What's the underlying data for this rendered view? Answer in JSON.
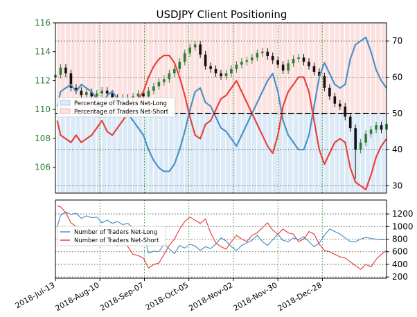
{
  "chart_data": [
    {
      "type": "line",
      "title": "USDJPY Client Positioning",
      "x_ticks": [
        "2018-Jul-13",
        "2018-Aug-10",
        "2018-Sep-07",
        "2018-Oct-05",
        "2018-Nov-02",
        "2018-Nov-30",
        "2018-Dec-28"
      ],
      "price_axis": {
        "ylim": [
          104.2,
          116
        ],
        "ticks": [
          106,
          108,
          110,
          112,
          114,
          116
        ],
        "color": "#2e7d32"
      },
      "sentiment_axis": {
        "ylim": [
          28,
          75
        ],
        "ticks": [
          30,
          40,
          50,
          60,
          70
        ],
        "reference_line": 50
      },
      "legend": {
        "placement": "center-left",
        "entries": [
          "Percentage of Traders Net-Long",
          "Percentage of Traders Net-Short"
        ]
      },
      "grid": true,
      "series": [
        {
          "name": "Percentage of Traders Net-Long",
          "color": "#4a90c8",
          "points": [
            [
              0.35,
              52
            ],
            [
              1,
              56
            ],
            [
              2,
              57
            ],
            [
              3,
              58
            ],
            [
              4,
              56
            ],
            [
              5,
              58
            ],
            [
              6,
              57
            ],
            [
              7,
              56
            ],
            [
              8,
              54
            ],
            [
              9,
              52
            ],
            [
              10,
              55
            ],
            [
              11,
              56
            ],
            [
              12,
              54
            ],
            [
              13,
              52
            ],
            [
              14,
              50
            ],
            [
              15,
              48
            ],
            [
              16,
              46
            ],
            [
              17,
              44
            ],
            [
              18,
              40
            ],
            [
              19,
              37
            ],
            [
              20,
              35
            ],
            [
              21,
              34
            ],
            [
              22,
              34
            ],
            [
              23,
              36
            ],
            [
              24,
              40
            ],
            [
              25,
              45
            ],
            [
              26,
              51
            ],
            [
              27,
              56
            ],
            [
              28,
              57
            ],
            [
              29,
              53
            ],
            [
              30,
              52
            ],
            [
              31,
              49
            ],
            [
              32,
              46
            ],
            [
              33,
              45
            ],
            [
              34,
              43
            ],
            [
              35,
              41
            ],
            [
              36,
              44
            ],
            [
              37,
              47
            ],
            [
              38,
              50
            ],
            [
              39,
              53
            ],
            [
              40,
              56
            ],
            [
              41,
              59
            ],
            [
              42,
              61
            ],
            [
              43,
              56
            ],
            [
              44,
              48
            ],
            [
              45,
              44
            ],
            [
              46,
              42
            ],
            [
              47,
              40
            ],
            [
              48,
              40
            ],
            [
              49,
              44
            ],
            [
              50,
              52
            ],
            [
              51,
              60
            ],
            [
              52,
              64
            ],
            [
              53,
              61
            ],
            [
              54,
              58
            ],
            [
              55,
              57
            ],
            [
              56,
              58
            ],
            [
              57,
              65
            ],
            [
              58,
              69
            ],
            [
              59,
              70
            ],
            [
              60,
              71
            ],
            [
              61,
              67
            ],
            [
              62,
              62
            ],
            [
              63,
              59
            ],
            [
              64,
              57
            ]
          ]
        },
        {
          "name": "Percentage of Traders Net-Short",
          "color": "#e8413c",
          "points": [
            [
              0.35,
              48
            ],
            [
              1,
              44
            ],
            [
              2,
              43
            ],
            [
              3,
              42
            ],
            [
              4,
              44
            ],
            [
              5,
              42
            ],
            [
              6,
              43
            ],
            [
              7,
              44
            ],
            [
              8,
              46
            ],
            [
              9,
              48
            ],
            [
              10,
              45
            ],
            [
              11,
              44
            ],
            [
              12,
              46
            ],
            [
              13,
              48
            ],
            [
              14,
              50
            ],
            [
              15,
              52
            ],
            [
              16,
              54
            ],
            [
              17,
              56
            ],
            [
              18,
              60
            ],
            [
              19,
              63
            ],
            [
              20,
              65
            ],
            [
              21,
              66
            ],
            [
              22,
              66
            ],
            [
              23,
              64
            ],
            [
              24,
              60
            ],
            [
              25,
              55
            ],
            [
              26,
              49
            ],
            [
              27,
              44
            ],
            [
              28,
              43
            ],
            [
              29,
              47
            ],
            [
              30,
              48
            ],
            [
              31,
              51
            ],
            [
              32,
              54
            ],
            [
              33,
              55
            ],
            [
              34,
              57
            ],
            [
              35,
              59
            ],
            [
              36,
              56
            ],
            [
              37,
              53
            ],
            [
              38,
              50
            ],
            [
              39,
              47
            ],
            [
              40,
              44
            ],
            [
              41,
              41
            ],
            [
              42,
              39
            ],
            [
              43,
              44
            ],
            [
              44,
              52
            ],
            [
              45,
              56
            ],
            [
              46,
              58
            ],
            [
              47,
              60
            ],
            [
              48,
              60
            ],
            [
              49,
              56
            ],
            [
              50,
              48
            ],
            [
              51,
              40
            ],
            [
              52,
              36
            ],
            [
              53,
              39
            ],
            [
              54,
              42
            ],
            [
              55,
              43
            ],
            [
              56,
              42
            ],
            [
              57,
              35
            ],
            [
              58,
              31
            ],
            [
              59,
              30
            ],
            [
              60,
              29
            ],
            [
              61,
              33
            ],
            [
              62,
              38
            ],
            [
              63,
              41
            ],
            [
              64,
              43
            ]
          ]
        }
      ],
      "candles_close": [
        112.4,
        112.9,
        112.5,
        111.5,
        111.3,
        111.0,
        111.2,
        110.9,
        111.1,
        111.3,
        111.1,
        110.8,
        110.4,
        110.8,
        110.5,
        110.9,
        111.1,
        110.9,
        111.3,
        111.6,
        111.9,
        112.1,
        112.5,
        112.8,
        113.3,
        113.9,
        114.3,
        114.5,
        113.8,
        113.0,
        112.8,
        112.5,
        112.3,
        112.5,
        112.8,
        113.1,
        113.3,
        113.4,
        113.6,
        113.9,
        114.0,
        113.7,
        113.4,
        113.1,
        112.7,
        113.2,
        113.5,
        113.6,
        113.3,
        113.0,
        112.6,
        112.3,
        111.5,
        110.9,
        110.4,
        110.2,
        109.5,
        108.7,
        107.2,
        107.7,
        108.3,
        108.6,
        108.9,
        108.6,
        109.0
      ],
      "spike_low_index": 58,
      "spike_low_value": 105.2
    },
    {
      "type": "line",
      "axis": {
        "ylim": [
          180,
          1420
        ],
        "ticks": [
          200,
          400,
          600,
          800,
          1000,
          1200
        ]
      },
      "legend": {
        "placement": "center-left",
        "entries": [
          "Number of Traders Net-Long",
          "Number of Traders Net-Short"
        ]
      },
      "grid": true,
      "series": [
        {
          "name": "Number of Traders Net-Long",
          "color": "#4a90c8",
          "points": [
            [
              0.35,
              1000
            ],
            [
              1,
              1180
            ],
            [
              2,
              1230
            ],
            [
              3,
              1190
            ],
            [
              4,
              1210
            ],
            [
              5,
              1130
            ],
            [
              6,
              1170
            ],
            [
              7,
              1140
            ],
            [
              8,
              1150
            ],
            [
              9,
              1060
            ],
            [
              10,
              1100
            ],
            [
              11,
              1050
            ],
            [
              12,
              1080
            ],
            [
              13,
              1030
            ],
            [
              14,
              1050
            ],
            [
              15,
              980
            ],
            [
              16,
              940
            ],
            [
              17,
              900
            ],
            [
              18,
              580
            ],
            [
              19,
              610
            ],
            [
              20,
              600
            ],
            [
              21,
              720
            ],
            [
              22,
              650
            ],
            [
              23,
              570
            ],
            [
              24,
              700
            ],
            [
              25,
              660
            ],
            [
              26,
              720
            ],
            [
              27,
              690
            ],
            [
              28,
              620
            ],
            [
              29,
              680
            ],
            [
              30,
              650
            ],
            [
              31,
              720
            ],
            [
              32,
              820
            ],
            [
              33,
              770
            ],
            [
              34,
              680
            ],
            [
              35,
              620
            ],
            [
              36,
              700
            ],
            [
              37,
              740
            ],
            [
              38,
              780
            ],
            [
              39,
              860
            ],
            [
              40,
              760
            ],
            [
              41,
              700
            ],
            [
              42,
              790
            ],
            [
              43,
              880
            ],
            [
              44,
              780
            ],
            [
              45,
              760
            ],
            [
              46,
              820
            ],
            [
              47,
              790
            ],
            [
              48,
              840
            ],
            [
              49,
              760
            ],
            [
              50,
              680
            ],
            [
              51,
              740
            ],
            [
              52,
              860
            ],
            [
              53,
              960
            ],
            [
              54,
              920
            ],
            [
              55,
              880
            ],
            [
              56,
              820
            ],
            [
              57,
              760
            ],
            [
              58,
              760
            ],
            [
              59,
              800
            ],
            [
              60,
              830
            ],
            [
              61,
              810
            ],
            [
              62,
              800
            ],
            [
              63,
              790
            ],
            [
              64,
              800
            ]
          ]
        },
        {
          "name": "Number of Traders Net-Short",
          "color": "#e8413c",
          "points": [
            [
              0.35,
              1330
            ],
            [
              1,
              1310
            ],
            [
              2,
              1220
            ],
            [
              3,
              1060
            ],
            [
              4,
              1000
            ],
            [
              5,
              950
            ],
            [
              6,
              820
            ],
            [
              7,
              900
            ],
            [
              8,
              760
            ],
            [
              9,
              800
            ],
            [
              10,
              700
            ],
            [
              11,
              760
            ],
            [
              12,
              690
            ],
            [
              13,
              770
            ],
            [
              14,
              680
            ],
            [
              15,
              560
            ],
            [
              16,
              540
            ],
            [
              17,
              500
            ],
            [
              18,
              340
            ],
            [
              19,
              400
            ],
            [
              20,
              420
            ],
            [
              21,
              560
            ],
            [
              22,
              700
            ],
            [
              23,
              800
            ],
            [
              24,
              960
            ],
            [
              25,
              1080
            ],
            [
              26,
              1150
            ],
            [
              27,
              1100
            ],
            [
              28,
              1050
            ],
            [
              29,
              1120
            ],
            [
              30,
              900
            ],
            [
              31,
              740
            ],
            [
              32,
              680
            ],
            [
              33,
              640
            ],
            [
              34,
              760
            ],
            [
              35,
              860
            ],
            [
              36,
              800
            ],
            [
              37,
              760
            ],
            [
              38,
              860
            ],
            [
              39,
              900
            ],
            [
              40,
              980
            ],
            [
              41,
              1060
            ],
            [
              42,
              940
            ],
            [
              43,
              880
            ],
            [
              44,
              960
            ],
            [
              45,
              900
            ],
            [
              46,
              880
            ],
            [
              47,
              760
            ],
            [
              48,
              800
            ],
            [
              49,
              920
            ],
            [
              50,
              880
            ],
            [
              51,
              720
            ],
            [
              52,
              620
            ],
            [
              53,
              600
            ],
            [
              54,
              560
            ],
            [
              55,
              520
            ],
            [
              56,
              500
            ],
            [
              57,
              440
            ],
            [
              58,
              380
            ],
            [
              59,
              320
            ],
            [
              60,
              400
            ],
            [
              61,
              360
            ],
            [
              62,
              480
            ],
            [
              63,
              560
            ],
            [
              64,
              620
            ]
          ]
        }
      ]
    }
  ],
  "colors": {
    "net_long_fill": "#dbeaf6",
    "net_short_fill": "#fbe2e0",
    "grid": "#2e9a2e",
    "candle_up": "#2e7d32",
    "candle_down": "#111111"
  }
}
